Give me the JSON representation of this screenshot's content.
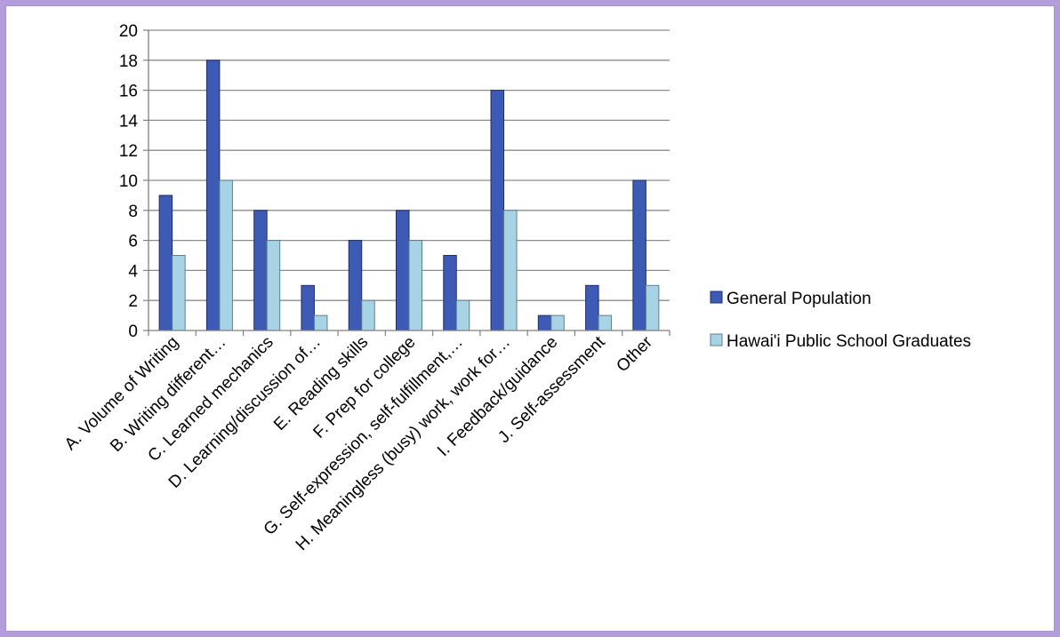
{
  "chart_data": {
    "type": "bar",
    "categories": [
      "A.  Volume of Writing",
      "B.  Writing different…",
      "C.  Learned mechanics",
      "D. Learning/discussion of…",
      "E.  Reading skills",
      "F.  Prep for college",
      "G.  Self-expression, self-fulfillment,…",
      "H.  Meaningless (busy) work, work for…",
      "I.  Feedback/guidance",
      "J.  Self-assessment",
      "Other"
    ],
    "series": [
      {
        "name": "General Population",
        "color": "#3d5bb5",
        "values": [
          9,
          18,
          8,
          3,
          6,
          8,
          5,
          16,
          1,
          3,
          10
        ]
      },
      {
        "name": "Hawai'i Public School Graduates",
        "color": "#a7d3e5",
        "values": [
          5,
          10,
          6,
          1,
          2,
          6,
          2,
          8,
          1,
          1,
          3
        ]
      }
    ],
    "ylim": [
      0,
      20
    ],
    "yticks": [
      0,
      2,
      4,
      6,
      8,
      10,
      12,
      14,
      16,
      18,
      20
    ],
    "grid": true,
    "legend_position": "right"
  }
}
